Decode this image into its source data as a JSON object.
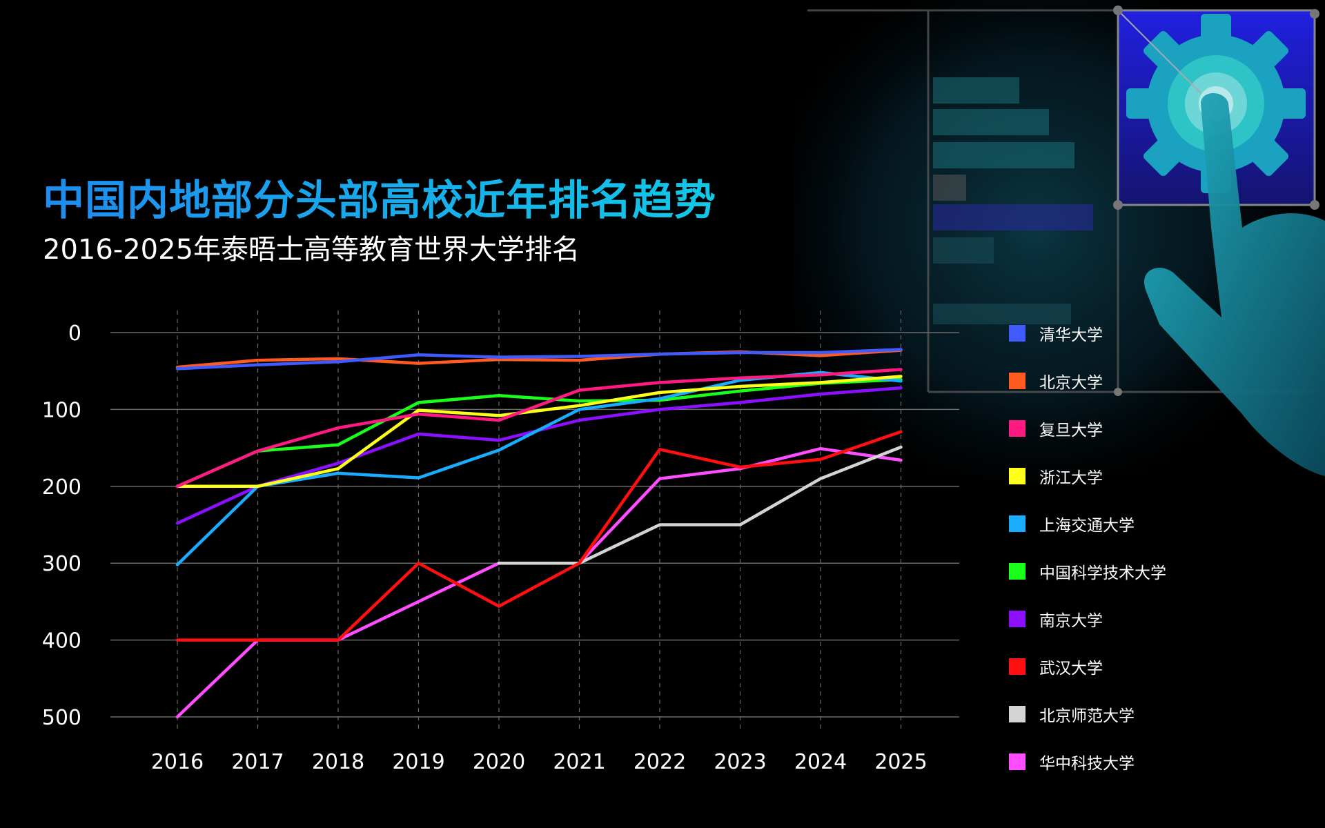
{
  "title": "中国内地部分头部高校近年排名趋势",
  "subtitle": "2016-2025年泰晤士高等教育世界大学排名",
  "colors": {
    "background": "#000000",
    "title_gradient_start": "#1e8cf0",
    "title_gradient_end": "#12c8e6",
    "grid": "#6b6b6b",
    "illustration_accent": "#1ab0c8",
    "illustration_panel": "#2a2ad8"
  },
  "icons": [
    "gear-icon",
    "pointing-hand-icon"
  ],
  "chart_data": {
    "type": "line",
    "x": [
      "2016",
      "2017",
      "2018",
      "2019",
      "2020",
      "2021",
      "2022",
      "2023",
      "2024",
      "2025"
    ],
    "yticks": [
      "0",
      "100",
      "200",
      "300",
      "400",
      "500"
    ],
    "ylim": [
      500,
      0
    ],
    "y_inverted": true,
    "grid": "horizontal solid, vertical dashed",
    "legend_position": "right",
    "series": [
      {
        "name": "清华大学",
        "color": "#3f5bff",
        "values": [
          47,
          42,
          38,
          29,
          32,
          31,
          28,
          26,
          26,
          22
        ]
      },
      {
        "name": "北京大学",
        "color": "#ff5a1f",
        "values": [
          45,
          36,
          34,
          40,
          35,
          36,
          28,
          25,
          30,
          23
        ]
      },
      {
        "name": "复旦大学",
        "color": "#ff1a82",
        "values": [
          200,
          154,
          124,
          106,
          114,
          75,
          65,
          59,
          55,
          48
        ]
      },
      {
        "name": "浙江大学",
        "color": "#ffff1a",
        "values": [
          200,
          200,
          177,
          101,
          108,
          95,
          78,
          70,
          65,
          57
        ]
      },
      {
        "name": "上海交通大学",
        "color": "#1aadff",
        "values": [
          302,
          200,
          183,
          189,
          153,
          100,
          86,
          62,
          52,
          63
        ]
      },
      {
        "name": "中国科学技术大学",
        "color": "#1aff1a",
        "values": [
          200,
          154,
          146,
          91,
          82,
          89,
          88,
          76,
          66,
          61
        ]
      },
      {
        "name": "南京大学",
        "color": "#8c0fff",
        "values": [
          248,
          200,
          170,
          132,
          140,
          114,
          100,
          91,
          80,
          72
        ]
      },
      {
        "name": "武汉大学",
        "color": "#ff0f0f",
        "values": [
          400,
          400,
          400,
          300,
          356,
          300,
          152,
          175,
          165,
          129
        ]
      },
      {
        "name": "北京师范大学",
        "color": "#d4d4d4",
        "values": [
          null,
          null,
          null,
          null,
          300,
          300,
          250,
          250,
          190,
          149
        ]
      },
      {
        "name": "华中科技大学",
        "color": "#ff4dff",
        "values": [
          500,
          400,
          400,
          350,
          300,
          300,
          190,
          177,
          151,
          166
        ]
      }
    ]
  }
}
